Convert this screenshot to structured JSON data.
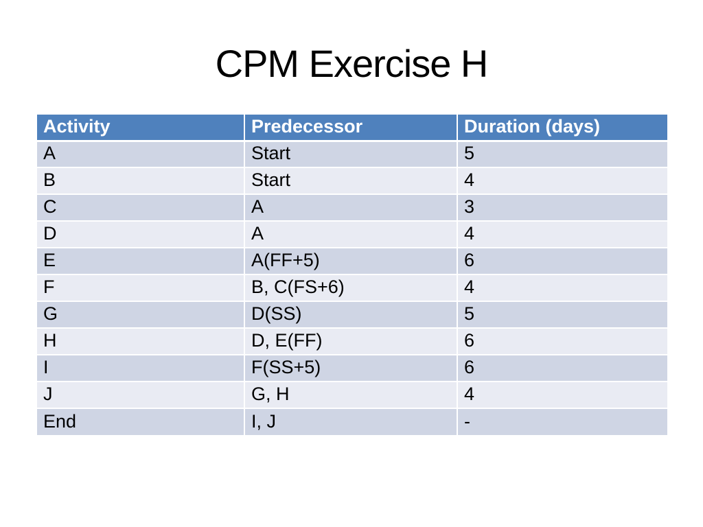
{
  "slide": {
    "title": "CPM Exercise H"
  },
  "table": {
    "columns": [
      "Activity",
      "Predecessor",
      "Duration (days)"
    ],
    "rows": [
      {
        "activity": "A",
        "predecessor": "Start",
        "duration": "5"
      },
      {
        "activity": "B",
        "predecessor": "Start",
        "duration": "4"
      },
      {
        "activity": "C",
        "predecessor": "A",
        "duration": "3"
      },
      {
        "activity": "D",
        "predecessor": "A",
        "duration": "4"
      },
      {
        "activity": "E",
        "predecessor": "A(FF+5)",
        "duration": "6"
      },
      {
        "activity": "F",
        "predecessor": "B, C(FS+6)",
        "duration": "4"
      },
      {
        "activity": "G",
        "predecessor": "D(SS)",
        "duration": "5"
      },
      {
        "activity": "H",
        "predecessor": "D, E(FF)",
        "duration": "6"
      },
      {
        "activity": "I",
        "predecessor": "F(SS+5)",
        "duration": "6"
      },
      {
        "activity": "J",
        "predecessor": "G, H",
        "duration": "4"
      },
      {
        "activity": "End",
        "predecessor": "I, J",
        "duration": "-"
      }
    ]
  },
  "colors": {
    "background": "#FFFFFF",
    "header_bg": "#4F81BD",
    "header_text": "#FFFFFF",
    "band_dark": "#CFD5E4",
    "band_light": "#E9EBF3",
    "cell_text": "#000000",
    "title_text": "#000000",
    "separator": "#FFFFFF"
  }
}
